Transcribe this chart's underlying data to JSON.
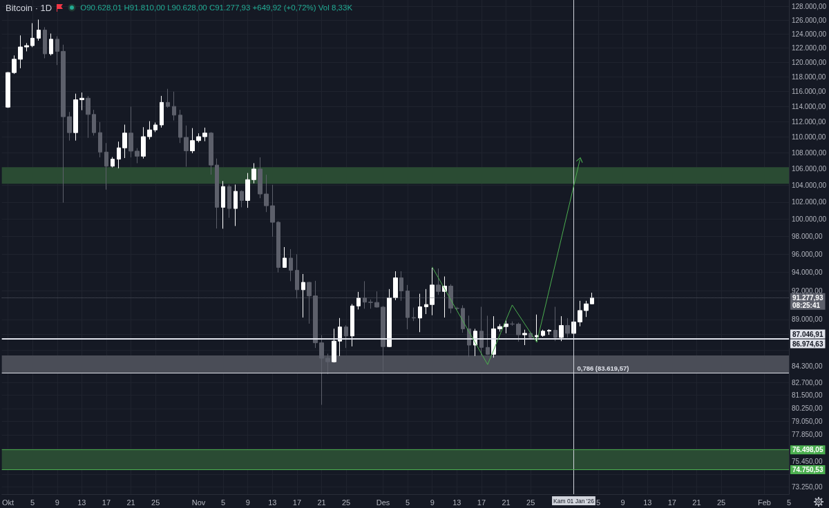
{
  "chart_data": {
    "type": "candlestick",
    "title": "Bitcoin · 1D",
    "subtitle": "O90.628,01 H91.810,00 L90.628,00 C91.277,93 +649,92 (+0,72%) Vol 8,33K",
    "series": [
      {
        "x": [
          "2025-10-01",
          "2025-10-02",
          "2025-10-03",
          "2025-10-04",
          "2025-10-05",
          "2025-10-06",
          "2025-10-07",
          "2025-10-08",
          "2025-10-09",
          "2025-10-10",
          "2025-10-11",
          "2025-10-12",
          "2025-10-13",
          "2025-10-14",
          "2025-10-15",
          "2025-10-16",
          "2025-10-17",
          "2025-10-18",
          "2025-10-19",
          "2025-10-20",
          "2025-10-21",
          "2025-10-22",
          "2025-10-23",
          "2025-10-24",
          "2025-10-25",
          "2025-10-26",
          "2025-10-27",
          "2025-10-28",
          "2025-10-29",
          "2025-10-30",
          "2025-10-31",
          "2025-11-01",
          "2025-11-02",
          "2025-11-03",
          "2025-11-04",
          "2025-11-05",
          "2025-11-06",
          "2025-11-07",
          "2025-11-08",
          "2025-11-09",
          "2025-11-10",
          "2025-11-11",
          "2025-11-12",
          "2025-11-13",
          "2025-11-14",
          "2025-11-15",
          "2025-11-16",
          "2025-11-17",
          "2025-11-18",
          "2025-11-19",
          "2025-11-20",
          "2025-11-21",
          "2025-11-22",
          "2025-11-23",
          "2025-11-24",
          "2025-11-25",
          "2025-11-26",
          "2025-11-27",
          "2025-11-28",
          "2025-11-29",
          "2025-11-30",
          "2025-12-01",
          "2025-12-02",
          "2025-12-03",
          "2025-12-04",
          "2025-12-05",
          "2025-12-06",
          "2025-12-07",
          "2025-12-08",
          "2025-12-09",
          "2025-12-10",
          "2025-12-11",
          "2025-12-12",
          "2025-12-13",
          "2025-12-14",
          "2025-12-15",
          "2025-12-16",
          "2025-12-17",
          "2025-12-18",
          "2025-12-19",
          "2025-12-20",
          "2025-12-21",
          "2025-12-22",
          "2025-12-23",
          "2025-12-24",
          "2025-12-25",
          "2025-12-26",
          "2025-12-27",
          "2025-12-28",
          "2025-12-29",
          "2025-12-30",
          "2025-12-31",
          "2026-01-01",
          "2026-01-02",
          "2026-01-03",
          "2026-01-04"
        ],
        "ohlc": [
          [
            113900,
            118650,
            113800,
            118570
          ],
          [
            118570,
            120950,
            118380,
            120420
          ],
          [
            120420,
            123800,
            119170,
            122150
          ],
          [
            122150,
            122700,
            121530,
            122340
          ],
          [
            122340,
            125570,
            122120,
            123400
          ],
          [
            123400,
            126100,
            123050,
            124570
          ],
          [
            124570,
            124990,
            120560,
            121180
          ],
          [
            121180,
            124070,
            120950,
            123250
          ],
          [
            123250,
            123680,
            119610,
            121530
          ],
          [
            121530,
            122470,
            101940,
            112640
          ],
          [
            112640,
            113270,
            109560,
            110580
          ],
          [
            110580,
            115700,
            109560,
            114880
          ],
          [
            114880,
            115850,
            113500,
            115090
          ],
          [
            115090,
            115370,
            109910,
            112940
          ],
          [
            112940,
            113550,
            110200,
            110580
          ],
          [
            110580,
            111940,
            107450,
            108110
          ],
          [
            108110,
            109250,
            103490,
            106350
          ],
          [
            106350,
            107480,
            106200,
            107220
          ],
          [
            107220,
            109430,
            106090,
            108640
          ],
          [
            108640,
            111610,
            107360,
            110520
          ],
          [
            110520,
            113970,
            107450,
            108230
          ],
          [
            108230,
            108600,
            106720,
            107590
          ],
          [
            107590,
            111280,
            107300,
            110060
          ],
          [
            110060,
            112060,
            109710,
            110930
          ],
          [
            110930,
            111880,
            110650,
            111570
          ],
          [
            111570,
            115400,
            111230,
            114530
          ],
          [
            114530,
            116350,
            113820,
            114000
          ],
          [
            114000,
            115970,
            112150,
            112850
          ],
          [
            112850,
            113550,
            109250,
            109970
          ],
          [
            109970,
            111500,
            106290,
            108260
          ],
          [
            108260,
            111160,
            107970,
            109560
          ],
          [
            109560,
            110490,
            109330,
            110060
          ],
          [
            110060,
            111220,
            109480,
            110520
          ],
          [
            110520,
            110650,
            105310,
            106490
          ],
          [
            106490,
            107300,
            98920,
            101390
          ],
          [
            101390,
            104530,
            98900,
            103860
          ],
          [
            103860,
            104100,
            100160,
            101250
          ],
          [
            101250,
            104100,
            99210,
            103290
          ],
          [
            103290,
            103400,
            101390,
            102200
          ],
          [
            102200,
            105510,
            101330,
            104700
          ],
          [
            104700,
            106720,
            104250,
            106000
          ],
          [
            106000,
            107450,
            102470,
            102970
          ],
          [
            102970,
            105300,
            100830,
            101570
          ],
          [
            101570,
            104060,
            97980,
            99640
          ],
          [
            99640,
            99770,
            94000,
            94550
          ],
          [
            94550,
            96810,
            94500,
            95580
          ],
          [
            95580,
            96580,
            93050,
            94230
          ],
          [
            94230,
            96010,
            91200,
            92130
          ],
          [
            92130,
            93830,
            89200,
            92920
          ],
          [
            92920,
            92980,
            88570,
            91470
          ],
          [
            91470,
            93090,
            86100,
            86620
          ],
          [
            86620,
            87400,
            80600,
            85080
          ],
          [
            85080,
            85530,
            83540,
            84730
          ],
          [
            84730,
            88050,
            84660,
            86790
          ],
          [
            86790,
            89150,
            85300,
            88230
          ],
          [
            88230,
            88400,
            86100,
            87310
          ],
          [
            87310,
            90610,
            86260,
            90410
          ],
          [
            90410,
            91900,
            90040,
            91250
          ],
          [
            91250,
            93050,
            90120,
            90810
          ],
          [
            90810,
            91100,
            90120,
            90780
          ],
          [
            90780,
            91950,
            90240,
            90290
          ],
          [
            90290,
            90400,
            83790,
            86240
          ],
          [
            86240,
            92200,
            86180,
            91270
          ],
          [
            91270,
            94130,
            91020,
            93410
          ],
          [
            93410,
            94130,
            90950,
            92000
          ],
          [
            92000,
            92640,
            87990,
            89200
          ],
          [
            89200,
            90240,
            88840,
            89150
          ],
          [
            89150,
            91700,
            87700,
            90320
          ],
          [
            90320,
            92200,
            89560,
            90560
          ],
          [
            90560,
            94500,
            89440,
            92640
          ],
          [
            92640,
            94430,
            91580,
            91950
          ],
          [
            91950,
            93560,
            89200,
            92520
          ],
          [
            92520,
            92720,
            89650,
            90170
          ],
          [
            90170,
            90320,
            90000,
            90150
          ],
          [
            90150,
            90480,
            87640,
            88040
          ],
          [
            88040,
            89400,
            85210,
            86390
          ],
          [
            86390,
            88040,
            85300,
            87800
          ],
          [
            87800,
            90320,
            85250,
            86160
          ],
          [
            86160,
            89390,
            85400,
            85470
          ],
          [
            85470,
            89340,
            85140,
            88040
          ],
          [
            88040,
            88520,
            87760,
            88270
          ],
          [
            88270,
            88900,
            87580,
            88540
          ],
          [
            88540,
            88800,
            88350,
            88520
          ],
          [
            88520,
            88680,
            86740,
            87430
          ],
          [
            87430,
            87950,
            86390,
            87580
          ],
          [
            87580,
            87760,
            87100,
            87160
          ],
          [
            87230,
            89510,
            86790,
            87360
          ],
          [
            87360,
            87950,
            87230,
            87800
          ],
          [
            87800,
            88000,
            87430,
            87890
          ],
          [
            87890,
            90320,
            86790,
            87160
          ],
          [
            87160,
            89340,
            86790,
            88380
          ],
          [
            88380,
            89140,
            87160,
            87580
          ],
          [
            87580,
            88900,
            87500,
            88750
          ],
          [
            88750,
            90950,
            88300,
            89930
          ],
          [
            89930,
            90950,
            89260,
            90630
          ],
          [
            90628.01,
            91810,
            90628,
            91277.93
          ]
        ],
        "colors": [
          "#ffffff",
          "#ffffff",
          "#ffffff",
          "#ffffff",
          "#ffffff",
          "#ffffff",
          "#5d606b",
          "#ffffff",
          "#5d606b",
          "#5d606b",
          "#5d606b",
          "#ffffff",
          "#ffffff",
          "#5d606b",
          "#5d606b",
          "#5d606b",
          "#5d606b",
          "#ffffff",
          "#ffffff",
          "#ffffff",
          "#5d606b",
          "#5d606b",
          "#ffffff",
          "#ffffff",
          "#ffffff",
          "#ffffff",
          "#5d606b",
          "#5d606b",
          "#5d606b",
          "#5d606b",
          "#ffffff",
          "#ffffff",
          "#ffffff",
          "#5d606b",
          "#5d606b",
          "#ffffff",
          "#5d606b",
          "#ffffff",
          "#5d606b",
          "#ffffff",
          "#ffffff",
          "#5d606b",
          "#5d606b",
          "#5d606b",
          "#5d606b",
          "#ffffff",
          "#5d606b",
          "#5d606b",
          "#ffffff",
          "#5d606b",
          "#5d606b",
          "#5d606b",
          "#5d606b",
          "#ffffff",
          "#ffffff",
          "#5d606b",
          "#ffffff",
          "#ffffff",
          "#5d606b",
          "#5d606b",
          "#5d606b",
          "#5d606b",
          "#ffffff",
          "#ffffff",
          "#5d606b",
          "#5d606b",
          "#5d606b",
          "#ffffff",
          "#ffffff",
          "#ffffff",
          "#5d606b",
          "#ffffff",
          "#5d606b",
          "#5d606b",
          "#5d606b",
          "#5d606b",
          "#ffffff",
          "#5d606b",
          "#5d606b",
          "#ffffff",
          "#ffffff",
          "#ffffff",
          "#5d606b",
          "#5d606b",
          "#ffffff",
          "#5d606b",
          "#ffffff",
          "#ffffff",
          "#ffffff",
          "#5d606b",
          "#ffffff",
          "#5d606b",
          "#ffffff",
          "#ffffff",
          "#ffffff",
          "#ffffff"
        ]
      },
      {
        "type": "line",
        "x": [
          "2025-12-09",
          "2025-12-18",
          "2025-12-22",
          "2025-12-26",
          "2026-01-02"
        ],
        "values": [
          94580,
          84460,
          90510,
          86670,
          107130
        ],
        "color": "#4caf50"
      }
    ],
    "xlim": [
      "2025-09-30",
      "2026-02-05"
    ],
    "xticks": [
      {
        "value": "2025-10-01",
        "label": "Okt"
      },
      {
        "value": "2025-10-05",
        "label": "5"
      },
      {
        "value": "2025-10-09",
        "label": "9"
      },
      {
        "value": "2025-10-13",
        "label": "13"
      },
      {
        "value": "2025-10-17",
        "label": "17"
      },
      {
        "value": "2025-10-21",
        "label": "21"
      },
      {
        "value": "2025-10-25",
        "label": "25"
      },
      {
        "value": "2025-11-01",
        "label": "Nov"
      },
      {
        "value": "2025-11-05",
        "label": "5"
      },
      {
        "value": "2025-11-09",
        "label": "9"
      },
      {
        "value": "2025-11-13",
        "label": "13"
      },
      {
        "value": "2025-11-17",
        "label": "17"
      },
      {
        "value": "2025-11-21",
        "label": "21"
      },
      {
        "value": "2025-11-25",
        "label": "25"
      },
      {
        "value": "2025-12-01",
        "label": "Des"
      },
      {
        "value": "2025-12-05",
        "label": "5"
      },
      {
        "value": "2025-12-09",
        "label": "9"
      },
      {
        "value": "2025-12-13",
        "label": "13"
      },
      {
        "value": "2025-12-17",
        "label": "17"
      },
      {
        "value": "2025-12-21",
        "label": "21"
      },
      {
        "value": "2025-12-25",
        "label": "25"
      },
      {
        "value": "2026-01-05",
        "label": "5"
      },
      {
        "value": "2026-01-09",
        "label": "9"
      },
      {
        "value": "2026-01-13",
        "label": "13"
      },
      {
        "value": "2026-01-17",
        "label": "17"
      },
      {
        "value": "2026-01-21",
        "label": "21"
      },
      {
        "value": "2026-01-25",
        "label": "25"
      },
      {
        "value": "2026-02-01",
        "label": "Feb"
      },
      {
        "value": "2026-02-05",
        "label": "5"
      }
    ],
    "ylim": [
      72650,
      129000
    ],
    "log": true,
    "yticks": [
      {
        "value": 128000,
        "label": "128.000,00"
      },
      {
        "value": 126000,
        "label": "126.000,00"
      },
      {
        "value": 124000,
        "label": "124.000,00"
      },
      {
        "value": 122000,
        "label": "122.000,00"
      },
      {
        "value": 120000,
        "label": "120.000,00"
      },
      {
        "value": 118000,
        "label": "118.000,00"
      },
      {
        "value": 116000,
        "label": "116.000,00"
      },
      {
        "value": 114000,
        "label": "114.000,00"
      },
      {
        "value": 112000,
        "label": "112.000,00"
      },
      {
        "value": 110000,
        "label": "110.000,00"
      },
      {
        "value": 108000,
        "label": "108.000,00"
      },
      {
        "value": 106000,
        "label": "106.000,00"
      },
      {
        "value": 104000,
        "label": "104.000,00"
      },
      {
        "value": 102000,
        "label": "102.000,00"
      },
      {
        "value": 100000,
        "label": "100.000,00"
      },
      {
        "value": 98000,
        "label": "98.000,00"
      },
      {
        "value": 96000,
        "label": "96.000,00"
      },
      {
        "value": 94000,
        "label": "94.000,00"
      },
      {
        "value": 92000,
        "label": "92.000,00"
      },
      {
        "value": 89000,
        "label": "89.000,00"
      },
      {
        "value": 87500,
        "label": null
      },
      {
        "value": 85900,
        "label": null
      },
      {
        "value": 84300,
        "label": "84.300,00"
      },
      {
        "value": 82700,
        "label": "82.700,00"
      },
      {
        "value": 81500,
        "label": "81.500,00"
      },
      {
        "value": 80250,
        "label": "80.250,00"
      },
      {
        "value": 79050,
        "label": "79.050,00"
      },
      {
        "value": 77850,
        "label": "77.850,00"
      },
      {
        "value": 76650,
        "label": null
      },
      {
        "value": 75450,
        "label": "75.450,00"
      },
      {
        "value": 74350,
        "label": null
      },
      {
        "value": 73250,
        "label": "73.250,00"
      }
    ],
    "grid": true,
    "bands": [
      {
        "axis": "y",
        "from": 104200,
        "to": 106230,
        "color": "#2a4b33"
      },
      {
        "axis": "y",
        "from": 74750.53,
        "to": 76498.05,
        "color": "#2a4b33"
      },
      {
        "axis": "y",
        "from": 85350,
        "to": 83619.57,
        "color": "#4a4d57"
      }
    ],
    "ref_lines": [
      {
        "axis": "x",
        "value": "2026-01-01",
        "label": "Kam 01 Jan '26",
        "color": "#d1d4dc"
      },
      {
        "axis": "y",
        "value": 91277.93,
        "label": "91.277,93\n08:25:41",
        "color": "#5d606b",
        "line_style": "dotted"
      },
      {
        "axis": "y",
        "value": 87046.91,
        "label": "87.046,91",
        "color": "#e0e3eb"
      },
      {
        "axis": "y",
        "value": 86974.63,
        "label": "86.974,63",
        "color": "#e0e3eb"
      },
      {
        "axis": "y",
        "value": 83619.57,
        "color": "#e0e3eb"
      },
      {
        "axis": "y",
        "value": 76498.05,
        "label": "76.498,05",
        "color": "#4caf50"
      },
      {
        "axis": "y",
        "value": 74750.53,
        "label": "74.750,53",
        "color": "#4caf50"
      }
    ],
    "annotations": [
      {
        "text": "0,786 (83.619,57)",
        "x": "2026-01-01",
        "y": 83619.57
      }
    ]
  }
}
